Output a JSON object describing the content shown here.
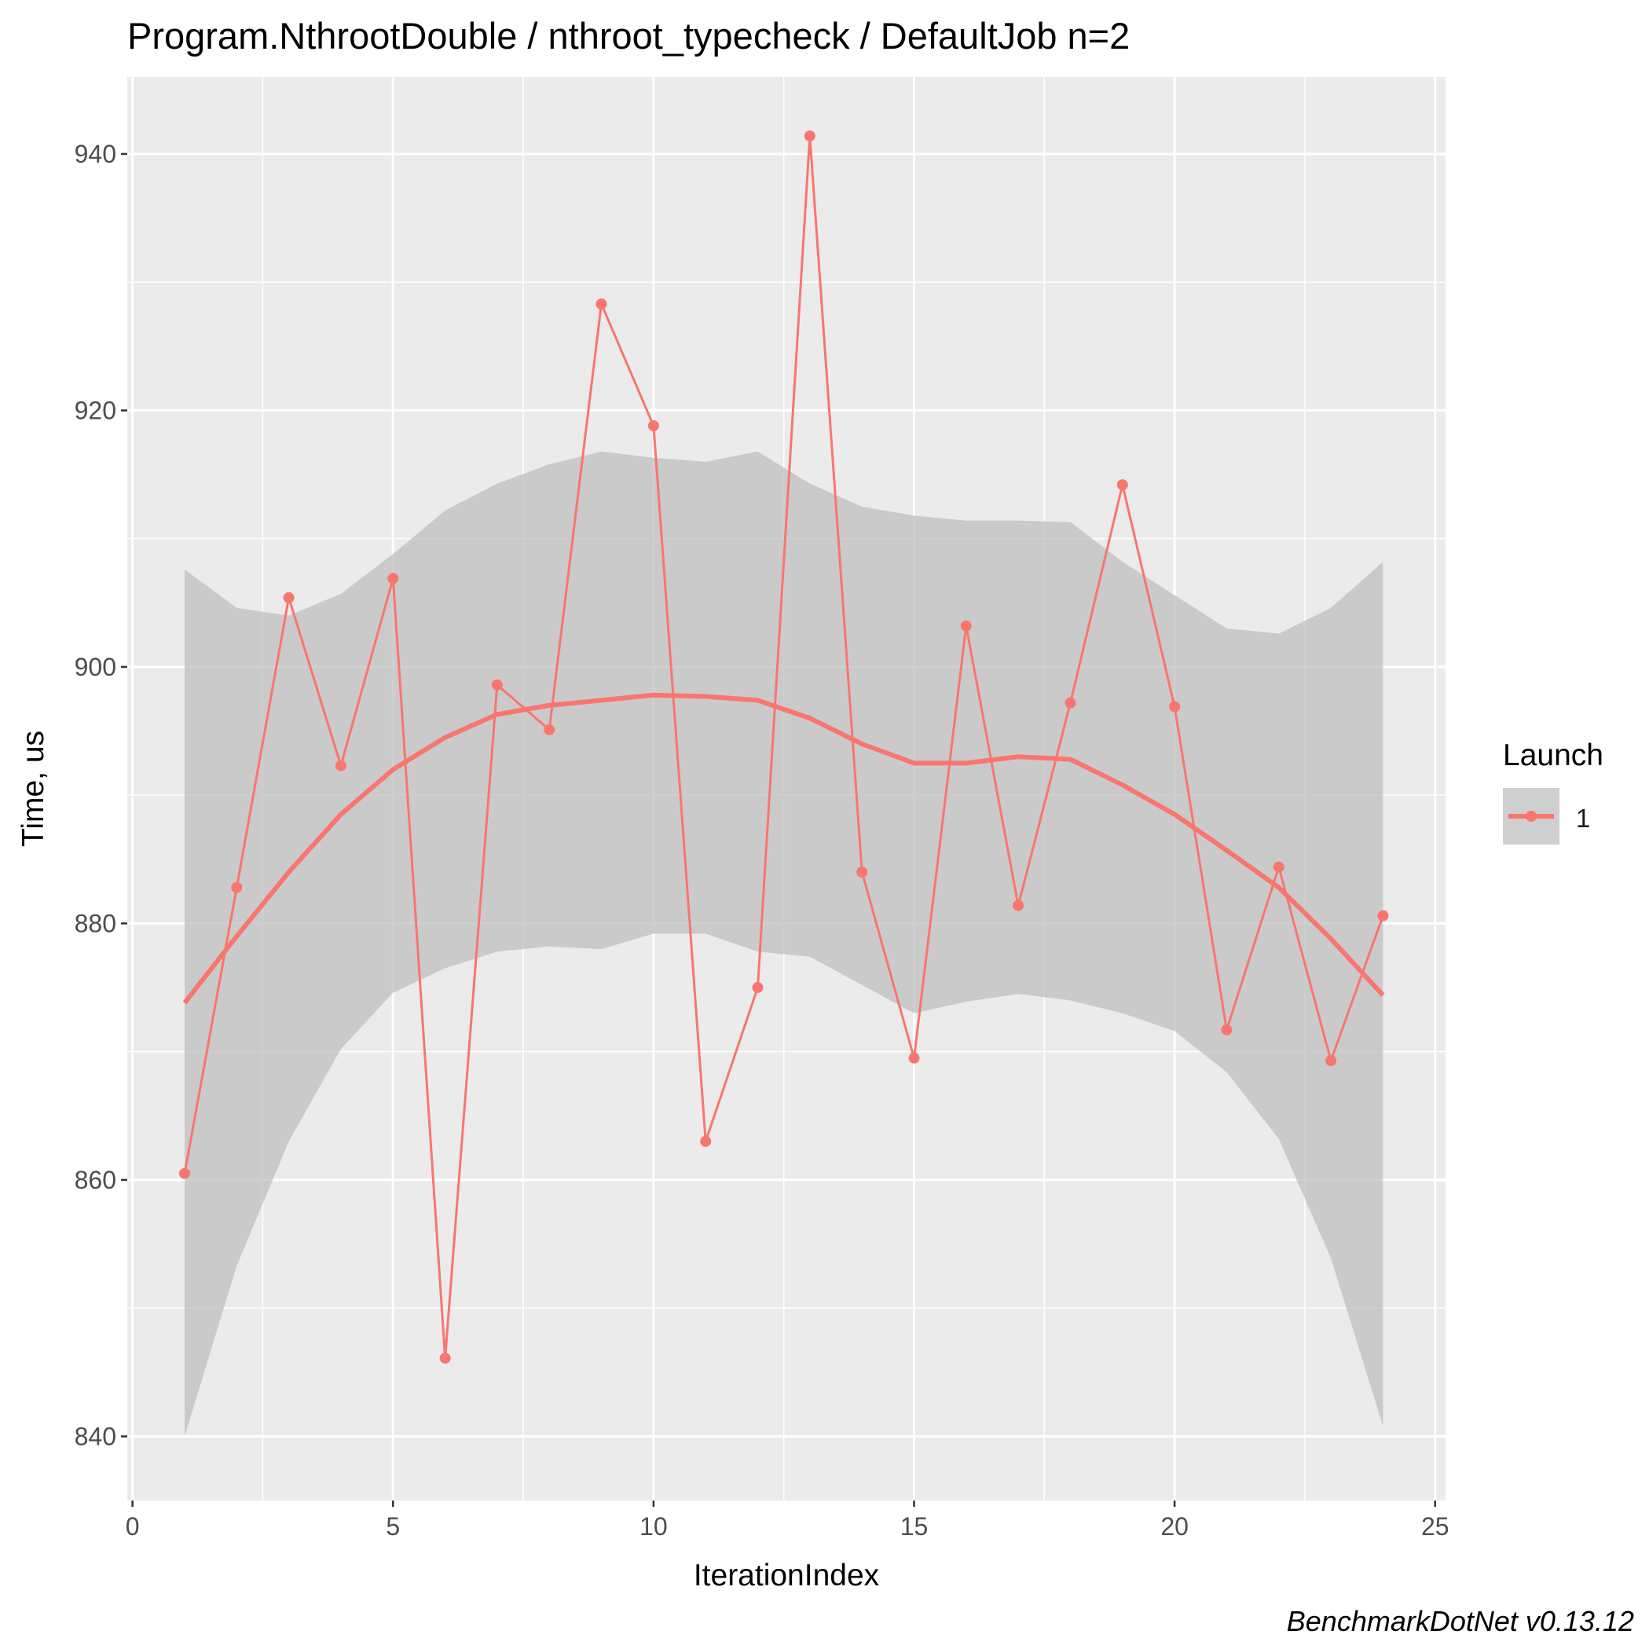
{
  "chart_data": {
    "type": "line",
    "title": "Program.NthrootDouble / nthroot_typecheck / DefaultJob n=2",
    "xlabel": "IterationIndex",
    "ylabel": "Time, us",
    "caption": "BenchmarkDotNet v0.13.12",
    "xlim": [
      -0.1,
      25.2
    ],
    "ylim": [
      835,
      946
    ],
    "x_ticks": [
      0,
      5,
      10,
      15,
      20,
      25
    ],
    "x_tick_labels": [
      "0",
      "5",
      "10",
      "15",
      "20",
      "25"
    ],
    "y_ticks": [
      840,
      860,
      880,
      900,
      920,
      940
    ],
    "y_tick_labels": [
      "840",
      "860",
      "880",
      "900",
      "920",
      "940"
    ],
    "grid": true,
    "legend": {
      "title": "Launch",
      "position": "right",
      "entries": [
        "1"
      ]
    },
    "colors": {
      "series": "#F8766D",
      "ribbon": "#bdbdbd",
      "panel": "#EBEBEB",
      "grid": "#ffffff"
    },
    "series": [
      {
        "name": "1",
        "x": [
          1,
          2,
          3,
          4,
          5,
          6,
          7,
          8,
          9,
          10,
          11,
          12,
          13,
          14,
          15,
          16,
          17,
          18,
          19,
          20,
          21,
          22,
          23,
          24
        ],
        "values": [
          860.5,
          882.8,
          905.4,
          892.3,
          906.9,
          846.1,
          898.6,
          895.1,
          928.3,
          918.8,
          863.0,
          875.0,
          941.4,
          884.0,
          869.5,
          903.2,
          881.4,
          897.2,
          914.2,
          896.9,
          871.7,
          884.4,
          869.3,
          880.6
        ]
      }
    ],
    "smooth": {
      "x": [
        1,
        2,
        3,
        4,
        5,
        6,
        7,
        8,
        9,
        10,
        11,
        12,
        13,
        14,
        15,
        16,
        17,
        18,
        19,
        20,
        21,
        22,
        23,
        24
      ],
      "fit": [
        873.8,
        879.0,
        884.0,
        888.5,
        892.0,
        894.5,
        896.3,
        897.0,
        897.4,
        897.8,
        897.7,
        897.4,
        896.0,
        894.0,
        892.5,
        892.5,
        893.0,
        892.8,
        890.8,
        888.5,
        885.7,
        882.8,
        878.8,
        874.4
      ],
      "upper": [
        907.6,
        904.6,
        904.0,
        905.7,
        908.8,
        912.2,
        914.3,
        915.8,
        916.8,
        916.3,
        916.0,
        916.8,
        914.3,
        912.5,
        911.8,
        911.4,
        911.4,
        911.3,
        908.2,
        905.6,
        903.0,
        902.6,
        904.6,
        908.2
      ],
      "lower": [
        840.0,
        853.3,
        863.0,
        870.2,
        874.6,
        876.5,
        877.8,
        878.2,
        878.0,
        879.2,
        879.2,
        877.8,
        877.4,
        875.2,
        873.0,
        873.9,
        874.5,
        874.0,
        873.0,
        871.6,
        868.4,
        863.2,
        853.9,
        840.8
      ]
    }
  }
}
